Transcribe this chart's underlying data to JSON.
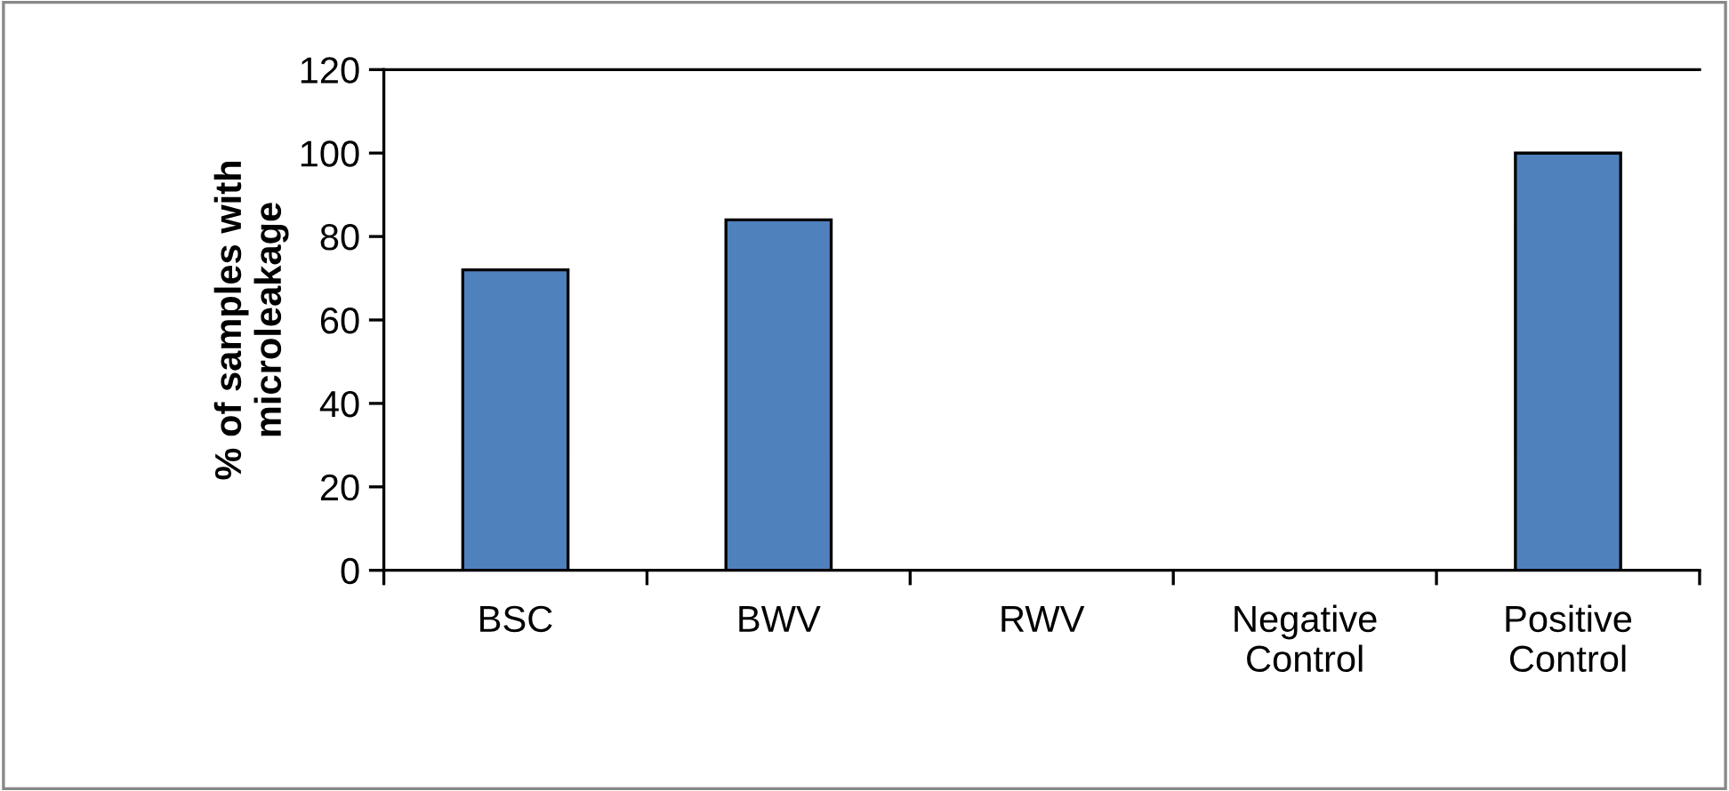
{
  "chart_data": {
    "type": "bar",
    "ylabel": "% of samples with\nmicroleakage",
    "categories": [
      "BSC",
      "BWV",
      "RWV",
      "Negative\nControl",
      "Positive\nControl"
    ],
    "values": [
      72,
      84,
      0,
      0,
      100
    ],
    "color": "#4f81bd",
    "ylim": [
      0,
      120
    ],
    "yticks": [
      0,
      20,
      40,
      60,
      80,
      100,
      120
    ],
    "grid": false,
    "legend": false
  }
}
